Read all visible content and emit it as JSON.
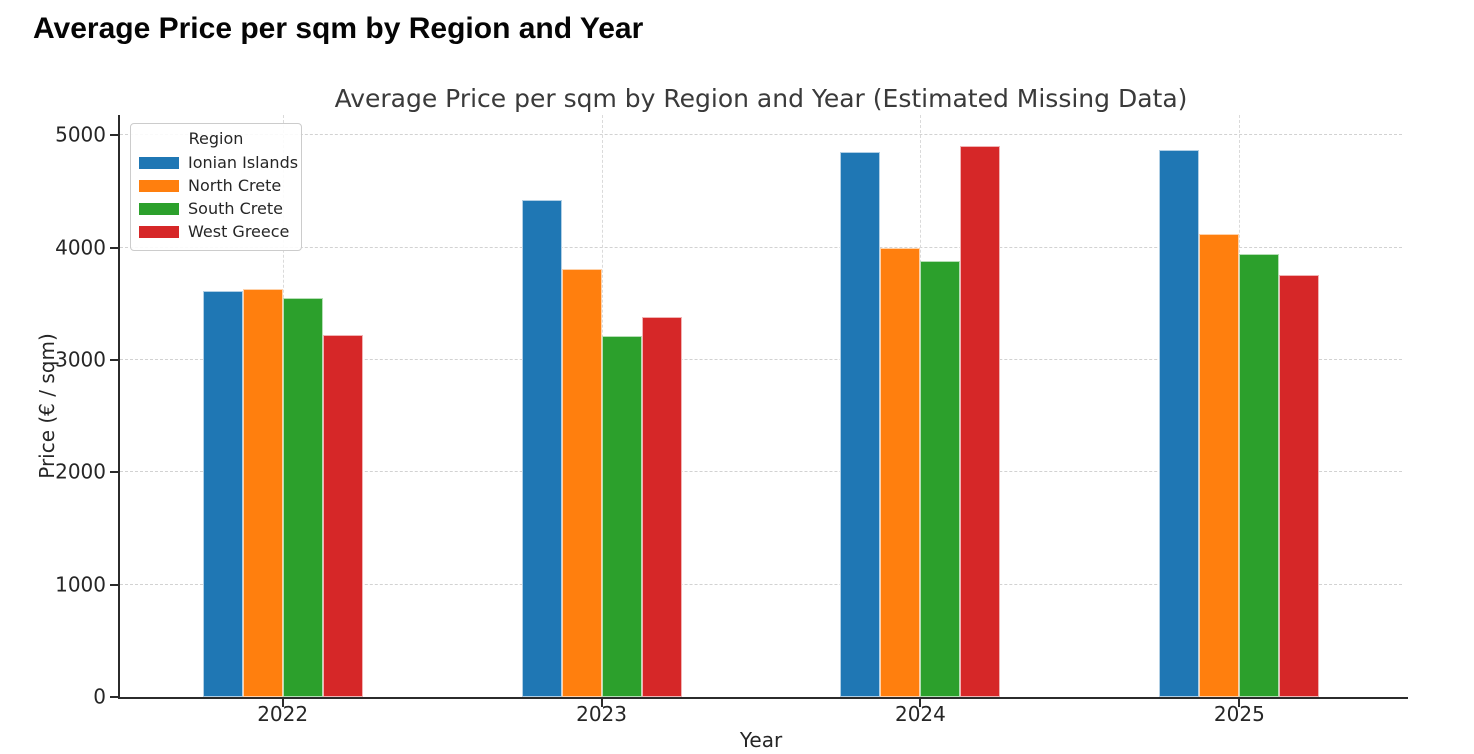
{
  "page": {
    "heading": "Average Price per sqm by Region and Year"
  },
  "chart_data": {
    "type": "bar",
    "title": "Average Price per sqm by Region and Year (Estimated Missing Data)",
    "xlabel": "Year",
    "ylabel": "Price (€ / sqm)",
    "legend_title": "Region",
    "legend_position": "upper left",
    "grid": "dashed light-gray, horizontal and vertical",
    "categories": [
      "2022",
      "2023",
      "2024",
      "2025"
    ],
    "series": [
      {
        "name": "Ionian Islands",
        "color": "#1f77b4",
        "values": [
          3610,
          4420,
          4850,
          4870
        ]
      },
      {
        "name": "North Crete",
        "color": "#ff7f0e",
        "values": [
          3630,
          3810,
          4000,
          4120
        ]
      },
      {
        "name": "South Crete",
        "color": "#2ca02c",
        "values": [
          3550,
          3210,
          3880,
          3940
        ]
      },
      {
        "name": "West Greece",
        "color": "#d62728",
        "values": [
          3220,
          3380,
          4900,
          3760
        ]
      }
    ],
    "yticks": [
      0,
      1000,
      2000,
      3000,
      4000,
      5000
    ],
    "ylim": [
      0,
      5180
    ],
    "axis_color": "#2b2b2b"
  }
}
